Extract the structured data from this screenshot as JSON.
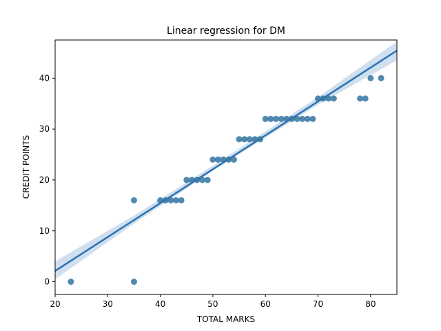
{
  "chart_data": {
    "type": "scatter",
    "title": "Linear regression for DM",
    "xlabel": "TOTAL MARKS",
    "ylabel": "CREDIT POINTS",
    "xlim": [
      20,
      85
    ],
    "ylim": [
      -2.5,
      47.5
    ],
    "xticks": [
      20,
      30,
      40,
      50,
      60,
      70,
      80
    ],
    "yticks": [
      0,
      10,
      20,
      30,
      40
    ],
    "grid": false,
    "points": [
      {
        "x": 23,
        "y": 0
      },
      {
        "x": 35,
        "y": 0
      },
      {
        "x": 35,
        "y": 16
      },
      {
        "x": 40,
        "y": 16
      },
      {
        "x": 41,
        "y": 16
      },
      {
        "x": 42,
        "y": 16
      },
      {
        "x": 43,
        "y": 16
      },
      {
        "x": 44,
        "y": 16
      },
      {
        "x": 45,
        "y": 20
      },
      {
        "x": 46,
        "y": 20
      },
      {
        "x": 47,
        "y": 20
      },
      {
        "x": 48,
        "y": 20
      },
      {
        "x": 49,
        "y": 20
      },
      {
        "x": 50,
        "y": 24
      },
      {
        "x": 51,
        "y": 24
      },
      {
        "x": 52,
        "y": 24
      },
      {
        "x": 53,
        "y": 24
      },
      {
        "x": 54,
        "y": 24
      },
      {
        "x": 55,
        "y": 28
      },
      {
        "x": 56,
        "y": 28
      },
      {
        "x": 57,
        "y": 28
      },
      {
        "x": 58,
        "y": 28
      },
      {
        "x": 59,
        "y": 28
      },
      {
        "x": 60,
        "y": 32
      },
      {
        "x": 61,
        "y": 32
      },
      {
        "x": 62,
        "y": 32
      },
      {
        "x": 63,
        "y": 32
      },
      {
        "x": 64,
        "y": 32
      },
      {
        "x": 65,
        "y": 32
      },
      {
        "x": 66,
        "y": 32
      },
      {
        "x": 67,
        "y": 32
      },
      {
        "x": 68,
        "y": 32
      },
      {
        "x": 69,
        "y": 32
      },
      {
        "x": 70,
        "y": 36
      },
      {
        "x": 71,
        "y": 36
      },
      {
        "x": 72,
        "y": 36
      },
      {
        "x": 73,
        "y": 36
      },
      {
        "x": 78,
        "y": 36
      },
      {
        "x": 79,
        "y": 36
      },
      {
        "x": 80,
        "y": 40
      },
      {
        "x": 82,
        "y": 40
      }
    ],
    "regression": {
      "slope": 0.666,
      "intercept": -11.2
    },
    "confidence_band": [
      {
        "x": 20,
        "lower": 0.5,
        "upper": 4.0
      },
      {
        "x": 35,
        "lower": 11.4,
        "upper": 13.0
      },
      {
        "x": 50,
        "lower": 21.8,
        "upper": 22.8
      },
      {
        "x": 70,
        "lower": 34.8,
        "upper": 36.3
      },
      {
        "x": 85,
        "lower": 43.5,
        "upper": 47.2
      }
    ],
    "colors": {
      "points": "#3274a1",
      "line": "#2a72b2",
      "band": "#aac4e0"
    }
  }
}
